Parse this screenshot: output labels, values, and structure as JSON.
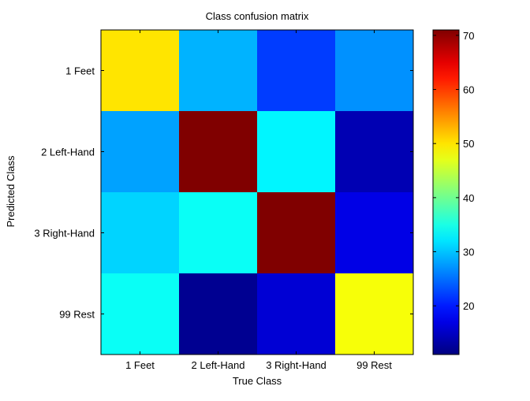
{
  "chart_data": {
    "type": "heatmap",
    "title": "Class confusion matrix",
    "xlabel": "True Class",
    "ylabel": "Predicted Class",
    "x_categories": [
      "1 Feet",
      "2 Left-Hand",
      "3 Right-Hand",
      "99 Rest"
    ],
    "y_categories": [
      "1 Feet",
      "2 Left-Hand",
      "3 Right-Hand",
      "99 Rest"
    ],
    "values": [
      [
        50,
        29,
        22,
        27
      ],
      [
        28,
        71,
        33,
        14
      ],
      [
        31,
        34,
        71,
        17
      ],
      [
        34,
        12,
        16,
        48
      ]
    ],
    "colormap": "jet",
    "color_range": [
      11,
      71
    ],
    "colorbar_ticks": [
      20,
      30,
      40,
      50,
      60,
      70
    ],
    "grid": false
  }
}
